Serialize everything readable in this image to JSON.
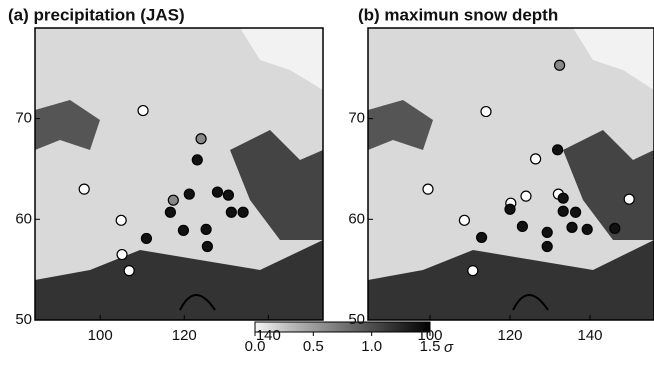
{
  "chart_data": [
    {
      "type": "scatter",
      "title": "(a) precipitation (JAS)",
      "xlim": [
        84.5,
        153
      ],
      "ylim": [
        50,
        79
      ],
      "xticks": [
        100,
        120,
        140
      ],
      "yticks": [
        50,
        60,
        70
      ],
      "series": [
        {
          "color": "#ffffff",
          "x": [
            110.2,
            96.2,
            105,
            105.2,
            106.9
          ],
          "values": [
            70.8,
            63.0,
            59.9,
            56.5,
            54.9
          ]
        },
        {
          "color": "#111111",
          "x": [
            111,
            116.7,
            121.2,
            119.8,
            123.1,
            125.2,
            125.5,
            127.9,
            130.5,
            131.2,
            134
          ],
          "values": [
            58.1,
            60.7,
            62.5,
            58.9,
            65.9,
            59.0,
            57.3,
            62.7,
            62.4,
            60.7,
            60.7
          ]
        },
        {
          "color": "#888888",
          "x": [
            124,
            117.4
          ],
          "values": [
            68,
            61.9
          ]
        }
      ]
    },
    {
      "type": "scatter",
      "title": "(b) maximun snow depth",
      "xlim": [
        84.5,
        156
      ],
      "ylim": [
        50,
        79
      ],
      "xticks": [
        100,
        120,
        140
      ],
      "yticks": [
        50,
        60,
        70
      ],
      "series": [
        {
          "color": "#ffffff",
          "x": [
            114,
            99.5,
            108.6,
            120.2,
            124,
            126.4,
            132.1,
            110.7,
            149.8
          ],
          "values": [
            70.7,
            63,
            59.9,
            61.6,
            62.3,
            66,
            62.5,
            54.9,
            62
          ]
        },
        {
          "color": "#111111",
          "x": [
            120,
            112.9,
            129.3,
            123.1,
            133.3,
            136.4,
            135.5,
            139.3,
            131.9,
            146.2,
            129.3,
            133.3
          ],
          "values": [
            61,
            58.2,
            58.7,
            59.3,
            62.1,
            60.7,
            59.2,
            59,
            66.9,
            59.1,
            57.3,
            60.8
          ]
        },
        {
          "color": "#888888",
          "x": [
            132.4
          ],
          "values": [
            75.3
          ]
        }
      ]
    }
  ],
  "colorbar": {
    "range": [
      0,
      1.5
    ],
    "ticks": [
      {
        "value": 0,
        "label": "0.0"
      },
      0.5,
      {
        "value": 1,
        "label": "1.0"
      },
      1.5
    ],
    "unit": "σ"
  }
}
